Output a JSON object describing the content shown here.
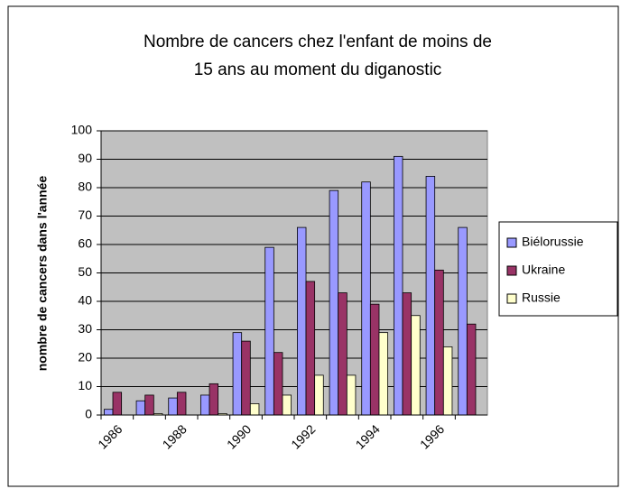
{
  "chart_data": {
    "type": "bar",
    "title": [
      "Nombre de cancers chez l'enfant de moins de",
      "15 ans au moment du diganostic"
    ],
    "y_label": "nombre de cancers dans l'année",
    "categories": [
      "1986",
      null,
      "1988",
      null,
      "1990",
      null,
      "1992",
      null,
      "1994",
      null,
      "1996",
      null
    ],
    "series": [
      {
        "name": "Biélorussie",
        "color": "#9999ff",
        "values": [
          2,
          5,
          6,
          7,
          29,
          59,
          66,
          79,
          82,
          91,
          84,
          66
        ]
      },
      {
        "name": "Ukraine",
        "color": "#993366",
        "values": [
          8,
          7,
          8,
          11,
          26,
          22,
          47,
          43,
          39,
          43,
          51,
          32
        ]
      },
      {
        "name": "Russie",
        "color": "#ffffcc",
        "values": [
          0,
          0.5,
          0,
          0.5,
          4,
          7,
          14,
          14,
          29,
          35,
          24,
          0
        ]
      }
    ],
    "ylim": [
      0,
      100
    ],
    "yticks": [
      0,
      10,
      20,
      30,
      40,
      50,
      60,
      70,
      80,
      90,
      100
    ],
    "grid": true,
    "legend": "right"
  }
}
